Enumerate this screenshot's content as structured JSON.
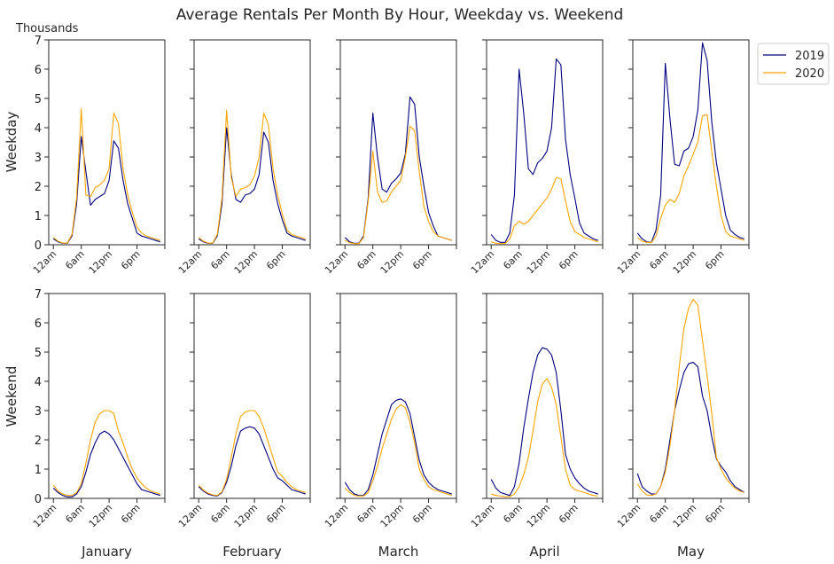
{
  "chart_data": {
    "type": "line",
    "title": "Average Rentals Per Month By Hour, Weekday vs. Weekend",
    "y_unit_label": "Thousands",
    "row_labels": [
      "Weekday",
      "Weekend"
    ],
    "months": [
      "January",
      "February",
      "March",
      "April",
      "May"
    ],
    "x_ticks": [
      {
        "hour": 0,
        "label": "12am"
      },
      {
        "hour": 6,
        "label": "6am"
      },
      {
        "hour": 12,
        "label": "12pm"
      },
      {
        "hour": 18,
        "label": "6pm"
      }
    ],
    "xlim": [
      -1,
      24
    ],
    "ylim": [
      0,
      7
    ],
    "y_ticks": [
      0,
      1,
      2,
      3,
      4,
      5,
      6,
      7
    ],
    "legend": {
      "placement": "outside top-right",
      "entries": [
        "2019",
        "2020"
      ]
    },
    "series_colors": {
      "2019": "#000080",
      "2020": "#FFA500"
    },
    "hours": [
      0,
      1,
      2,
      3,
      4,
      5,
      6,
      7,
      8,
      9,
      10,
      11,
      12,
      13,
      14,
      15,
      16,
      17,
      18,
      19,
      20,
      21,
      22,
      23
    ],
    "panels": [
      {
        "row": "Weekday",
        "month": "January",
        "series": [
          {
            "name": "2019",
            "values": [
              0.2,
              0.1,
              0.05,
              0.05,
              0.3,
              1.4,
              3.7,
              2.5,
              1.35,
              1.55,
              1.65,
              1.75,
              2.2,
              3.55,
              3.3,
              2.2,
              1.4,
              0.9,
              0.4,
              0.3,
              0.25,
              0.2,
              0.15,
              0.1
            ]
          },
          {
            "name": "2020",
            "values": [
              0.25,
              0.12,
              0.06,
              0.06,
              0.35,
              1.6,
              4.65,
              1.7,
              1.65,
              1.95,
              2.05,
              2.2,
              2.6,
              4.5,
              4.15,
              2.6,
              1.7,
              1.1,
              0.6,
              0.4,
              0.3,
              0.25,
              0.2,
              0.15
            ]
          }
        ]
      },
      {
        "row": "Weekday",
        "month": "February",
        "series": [
          {
            "name": "2019",
            "values": [
              0.2,
              0.1,
              0.05,
              0.05,
              0.3,
              1.4,
              4.0,
              2.4,
              1.55,
              1.45,
              1.7,
              1.75,
              1.9,
              2.4,
              3.85,
              3.5,
              2.2,
              1.4,
              0.85,
              0.4,
              0.3,
              0.25,
              0.2,
              0.15
            ]
          },
          {
            "name": "2020",
            "values": [
              0.25,
              0.12,
              0.06,
              0.06,
              0.35,
              1.6,
              4.6,
              2.3,
              1.65,
              1.9,
              1.95,
              2.05,
              2.35,
              3.0,
              4.5,
              4.1,
              2.6,
              1.7,
              1.05,
              0.5,
              0.35,
              0.3,
              0.25,
              0.2
            ]
          }
        ]
      },
      {
        "row": "Weekday",
        "month": "March",
        "series": [
          {
            "name": "2019",
            "values": [
              0.25,
              0.1,
              0.05,
              0.05,
              0.3,
              1.6,
              4.5,
              3.0,
              1.9,
              1.8,
              2.1,
              2.25,
              2.45,
              3.1,
              5.05,
              4.8,
              3.0,
              2.0,
              1.1,
              0.65,
              0.3,
              0.25,
              0.2,
              0.15
            ]
          },
          {
            "name": "2020",
            "values": [
              0.15,
              0.07,
              0.04,
              0.04,
              0.25,
              1.5,
              3.2,
              1.8,
              1.45,
              1.5,
              1.8,
              2.0,
              2.2,
              3.0,
              4.05,
              3.9,
              2.5,
              1.3,
              0.8,
              0.45,
              0.3,
              0.25,
              0.2,
              0.15
            ]
          }
        ]
      },
      {
        "row": "Weekday",
        "month": "April",
        "series": [
          {
            "name": "2019",
            "values": [
              0.35,
              0.15,
              0.08,
              0.08,
              0.4,
              1.7,
              6.0,
              4.5,
              2.6,
              2.4,
              2.8,
              2.95,
              3.2,
              4.0,
              6.35,
              6.15,
              3.6,
              2.4,
              1.6,
              0.75,
              0.4,
              0.3,
              0.2,
              0.15
            ]
          },
          {
            "name": "2020",
            "values": [
              0.1,
              0.05,
              0.04,
              0.04,
              0.2,
              0.65,
              0.8,
              0.7,
              0.8,
              1.0,
              1.2,
              1.4,
              1.6,
              1.9,
              2.3,
              2.25,
              1.5,
              0.8,
              0.45,
              0.35,
              0.25,
              0.2,
              0.15,
              0.1
            ]
          }
        ]
      },
      {
        "row": "Weekday",
        "month": "May",
        "series": [
          {
            "name": "2019",
            "values": [
              0.4,
              0.2,
              0.1,
              0.08,
              0.5,
              1.7,
              6.2,
              4.3,
              2.75,
              2.7,
              3.2,
              3.3,
              3.7,
              4.6,
              6.9,
              6.3,
              4.2,
              2.8,
              1.9,
              1.0,
              0.5,
              0.35,
              0.25,
              0.2
            ]
          },
          {
            "name": "2020",
            "values": [
              0.25,
              0.12,
              0.08,
              0.07,
              0.3,
              0.9,
              1.35,
              1.55,
              1.45,
              1.75,
              2.35,
              2.7,
              3.1,
              3.5,
              4.4,
              4.45,
              3.2,
              2.0,
              1.0,
              0.45,
              0.3,
              0.25,
              0.2,
              0.15
            ]
          }
        ]
      },
      {
        "row": "Weekend",
        "month": "January",
        "series": [
          {
            "name": "2019",
            "values": [
              0.35,
              0.2,
              0.1,
              0.05,
              0.05,
              0.15,
              0.4,
              0.9,
              1.5,
              1.9,
              2.2,
              2.3,
              2.2,
              2.0,
              1.7,
              1.4,
              1.1,
              0.8,
              0.5,
              0.3,
              0.25,
              0.2,
              0.15,
              0.1
            ]
          },
          {
            "name": "2020",
            "values": [
              0.45,
              0.25,
              0.15,
              0.1,
              0.1,
              0.2,
              0.5,
              1.2,
              2.0,
              2.6,
              2.9,
              3.0,
              3.0,
              2.9,
              2.3,
              1.9,
              1.4,
              1.0,
              0.7,
              0.5,
              0.35,
              0.25,
              0.2,
              0.15
            ]
          }
        ]
      },
      {
        "row": "Weekend",
        "month": "February",
        "series": [
          {
            "name": "2019",
            "values": [
              0.4,
              0.25,
              0.15,
              0.1,
              0.08,
              0.2,
              0.55,
              1.1,
              1.8,
              2.3,
              2.4,
              2.45,
              2.4,
              2.2,
              1.8,
              1.4,
              1.0,
              0.7,
              0.6,
              0.45,
              0.3,
              0.25,
              0.2,
              0.15
            ]
          },
          {
            "name": "2020",
            "values": [
              0.45,
              0.28,
              0.18,
              0.12,
              0.1,
              0.22,
              0.65,
              1.4,
              2.2,
              2.8,
              2.95,
              3.0,
              3.0,
              2.8,
              2.4,
              1.9,
              1.4,
              0.9,
              0.75,
              0.55,
              0.4,
              0.3,
              0.25,
              0.2
            ]
          }
        ]
      },
      {
        "row": "Weekend",
        "month": "March",
        "series": [
          {
            "name": "2019",
            "values": [
              0.55,
              0.3,
              0.15,
              0.1,
              0.1,
              0.3,
              0.8,
              1.5,
              2.2,
              2.7,
              3.2,
              3.35,
              3.4,
              3.3,
              2.9,
              2.1,
              1.3,
              0.8,
              0.55,
              0.4,
              0.3,
              0.25,
              0.2,
              0.15
            ]
          },
          {
            "name": "2020",
            "values": [
              0.35,
              0.2,
              0.1,
              0.08,
              0.08,
              0.2,
              0.6,
              1.1,
              1.7,
              2.2,
              2.7,
              3.05,
              3.2,
              3.1,
              2.6,
              1.9,
              1.0,
              0.65,
              0.4,
              0.3,
              0.25,
              0.2,
              0.15,
              0.1
            ]
          }
        ]
      },
      {
        "row": "Weekend",
        "month": "April",
        "series": [
          {
            "name": "2019",
            "values": [
              0.65,
              0.35,
              0.2,
              0.15,
              0.1,
              0.4,
              1.2,
              2.4,
              3.4,
              4.3,
              4.9,
              5.15,
              5.1,
              4.9,
              4.3,
              3.0,
              1.5,
              1.0,
              0.7,
              0.5,
              0.35,
              0.25,
              0.2,
              0.15
            ]
          },
          {
            "name": "2020",
            "values": [
              0.15,
              0.1,
              0.08,
              0.06,
              0.06,
              0.15,
              0.4,
              0.8,
              1.4,
              2.3,
              3.3,
              3.9,
              4.1,
              3.8,
              3.2,
              2.1,
              1.0,
              0.45,
              0.3,
              0.25,
              0.2,
              0.15,
              0.1,
              0.08
            ]
          }
        ]
      },
      {
        "row": "Weekend",
        "month": "May",
        "series": [
          {
            "name": "2019",
            "values": [
              0.85,
              0.4,
              0.25,
              0.15,
              0.15,
              0.4,
              1.0,
              2.0,
              3.0,
              3.7,
              4.3,
              4.6,
              4.65,
              4.5,
              3.5,
              3.0,
              2.1,
              1.35,
              1.1,
              0.9,
              0.6,
              0.4,
              0.3,
              0.2
            ]
          },
          {
            "name": "2020",
            "values": [
              0.5,
              0.25,
              0.12,
              0.1,
              0.15,
              0.4,
              0.9,
              1.8,
              3.0,
              4.5,
              5.8,
              6.5,
              6.8,
              6.6,
              5.4,
              4.2,
              2.9,
              1.4,
              1.0,
              0.7,
              0.5,
              0.35,
              0.25,
              0.2
            ]
          }
        ]
      }
    ]
  }
}
